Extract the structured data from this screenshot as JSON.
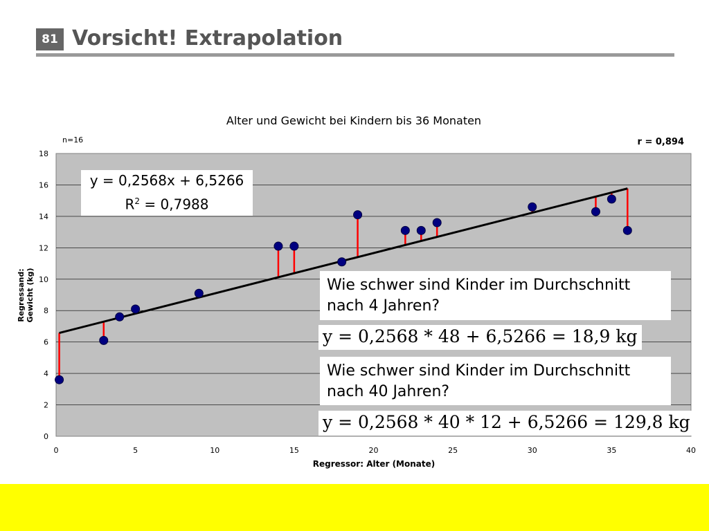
{
  "slide": {
    "number": "81",
    "title": "Vorsicht! Extrapolation"
  },
  "chart_data": {
    "type": "scatter",
    "title": "Alter und Gewicht bei Kindern bis 36 Monaten",
    "xlabel": "Regressor: Alter (Monate)",
    "ylabel_line1": "Regressand:",
    "ylabel_line2": "Gewicht (kg)",
    "xlim": [
      0,
      40
    ],
    "ylim": [
      0,
      18
    ],
    "x_ticks": [
      0,
      5,
      10,
      15,
      20,
      25,
      30,
      35,
      40
    ],
    "y_ticks": [
      0,
      2,
      4,
      6,
      8,
      10,
      12,
      14,
      16,
      18
    ],
    "grid": true,
    "sample_note": "n=16",
    "correlation_note": "r = 0,894",
    "points": [
      {
        "x": 0.2,
        "y": 3.6
      },
      {
        "x": 3,
        "y": 6.1
      },
      {
        "x": 4,
        "y": 7.6
      },
      {
        "x": 5,
        "y": 8.1
      },
      {
        "x": 9,
        "y": 9.1
      },
      {
        "x": 14,
        "y": 12.1
      },
      {
        "x": 15,
        "y": 12.1
      },
      {
        "x": 18,
        "y": 11.1
      },
      {
        "x": 19,
        "y": 14.1
      },
      {
        "x": 22,
        "y": 13.1
      },
      {
        "x": 23,
        "y": 13.1
      },
      {
        "x": 24,
        "y": 13.6
      },
      {
        "x": 30,
        "y": 14.6
      },
      {
        "x": 34,
        "y": 14.3
      },
      {
        "x": 35,
        "y": 15.1
      },
      {
        "x": 36,
        "y": 13.1
      }
    ],
    "regression": {
      "slope": 0.2568,
      "intercept": 6.5266,
      "x_range": [
        0.2,
        36
      ]
    },
    "colors": {
      "plot_background": "#c0c0c0",
      "point": "#000080",
      "residual": "#ff0000",
      "regression_line": "#000000"
    }
  },
  "callouts": {
    "equation_line1": "y = 0,2568x + 6,5266",
    "r2_prefix": "R",
    "r2_exp": "2",
    "r2_value": " = 0,7988",
    "question1": "Wie schwer sind Kinder im Durchschnitt nach 4 Jahren?",
    "formula1": "y = 0,2568 * 48 + 6,5266 = 18,9 kg",
    "question2": "Wie schwer sind Kinder im Durchschnitt nach 40 Jahren?",
    "formula2": "y = 0,2568 * 40 * 12 + 6,5266 = 129,8 kg"
  },
  "colors": {
    "footer_band": "#ffff00",
    "title_text": "#555555"
  }
}
